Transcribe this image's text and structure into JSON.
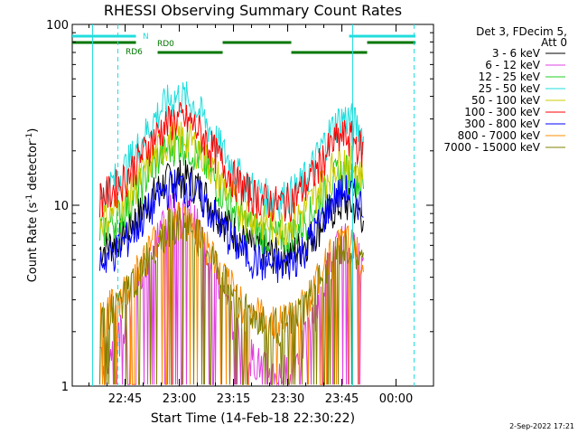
{
  "chart_data": {
    "type": "line",
    "title": "RHESSI Observing Summary Count Rates",
    "xlabel": "Start Time (14-Feb-18 22:30:22)",
    "ylabel_main": "Count Rate (s",
    "ylabel_sup1": "-1",
    "ylabel_mid": " detector",
    "ylabel_sup2": "-1",
    "ylabel_end": ")",
    "y_scale": "log",
    "ylim": [
      1,
      100
    ],
    "x_range_minutes": [
      "22:30:22",
      "00:12"
    ],
    "x_ticks": [
      "22:45",
      "23:00",
      "23:15",
      "23:30",
      "23:45",
      "00:00"
    ],
    "y_ticks": [
      "1",
      "10",
      "100"
    ],
    "legend_header": [
      "Det 3, FDecim 5,",
      "Att 0"
    ],
    "legend_position": "right",
    "series": [
      {
        "name": "3 - 6 keV",
        "color": "#000000",
        "peak1": 14.5,
        "peak2": 9.5,
        "base": 5.2
      },
      {
        "name": "6 - 12 keV",
        "color": "#e040e0",
        "peak1": 10,
        "peak2": 8,
        "base": 1.1
      },
      {
        "name": "12 - 25 keV",
        "color": "#22cc22",
        "peak1": 22,
        "peak2": 15.5,
        "base": 6.5
      },
      {
        "name": "25 - 50 keV",
        "color": "#22dddd",
        "peak1": 40,
        "peak2": 32,
        "base": 10.5
      },
      {
        "name": "50 - 100 keV",
        "color": "#cccc00",
        "peak1": 24,
        "peak2": 18,
        "base": 7.5
      },
      {
        "name": "100 - 300 keV",
        "color": "#ff0000",
        "peak1": 30,
        "peak2": 24,
        "base": 10
      },
      {
        "name": "300 - 800 keV",
        "color": "#0000ff",
        "peak1": 13,
        "peak2": 12,
        "base": 4.5
      },
      {
        "name": "800 - 7000 keV",
        "color": "#ff8c00",
        "peak1": 8.5,
        "peak2": 6.5,
        "base": 2.2
      },
      {
        "name": "7000 - 15000 keV",
        "color": "#808000",
        "peak1": 8,
        "peak2": 6,
        "base": 2.1
      }
    ],
    "flag_labels": {
      "n": "N",
      "rd0": "RD0",
      "rd6": "RD6"
    },
    "vertical_markers": [
      "22:36",
      "22:43",
      "23:48",
      "00:05"
    ],
    "footer_date": "2-Sep-2022 17:21"
  }
}
